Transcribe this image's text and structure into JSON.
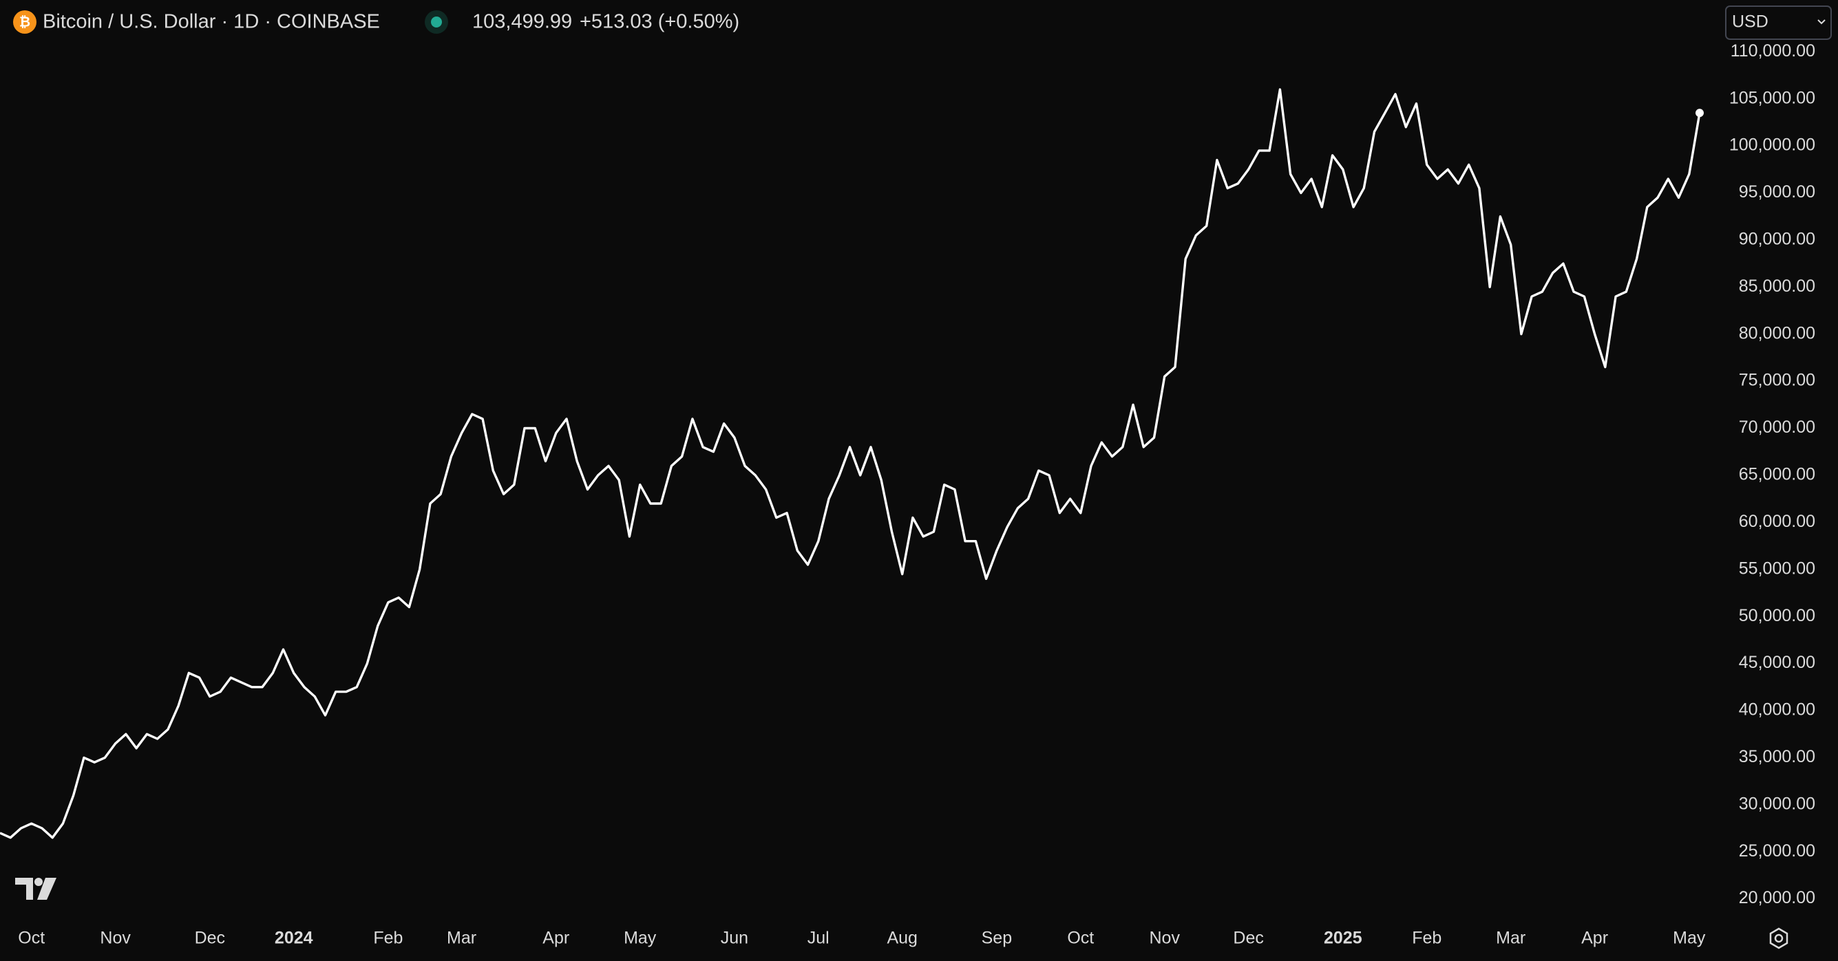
{
  "header": {
    "symbol": "Bitcoin / U.S. Dollar · 1D · COINBASE",
    "last_price": "103,499.99",
    "change": "+513.03 (+0.50%)",
    "currency": "USD"
  },
  "chart_data": {
    "type": "line",
    "color": "#ffffff",
    "grid": false,
    "ylim": [
      18000,
      115500
    ],
    "yticks": [
      {
        "value": 20000,
        "label": "20,000.00"
      },
      {
        "value": 25000,
        "label": "25,000.00"
      },
      {
        "value": 30000,
        "label": "30,000.00"
      },
      {
        "value": 35000,
        "label": "35,000.00"
      },
      {
        "value": 40000,
        "label": "40,000.00"
      },
      {
        "value": 45000,
        "label": "45,000.00"
      },
      {
        "value": 50000,
        "label": "50,000.00"
      },
      {
        "value": 55000,
        "label": "55,000.00"
      },
      {
        "value": 60000,
        "label": "60,000.00"
      },
      {
        "value": 65000,
        "label": "65,000.00"
      },
      {
        "value": 70000,
        "label": "70,000.00"
      },
      {
        "value": 75000,
        "label": "75,000.00"
      },
      {
        "value": 80000,
        "label": "80,000.00"
      },
      {
        "value": 85000,
        "label": "85,000.00"
      },
      {
        "value": 90000,
        "label": "90,000.00"
      },
      {
        "value": 95000,
        "label": "95,000.00"
      },
      {
        "value": 100000,
        "label": "100,000.00"
      },
      {
        "value": 105000,
        "label": "105,000.00"
      },
      {
        "value": 110000,
        "label": "110,000.00"
      }
    ],
    "categories": [
      null,
      null,
      null,
      "Oct",
      null,
      null,
      null,
      null,
      null,
      null,
      null,
      "Nov",
      null,
      null,
      null,
      null,
      null,
      null,
      null,
      null,
      "Dec",
      null,
      null,
      null,
      null,
      null,
      null,
      null,
      "2024",
      null,
      null,
      null,
      null,
      null,
      null,
      null,
      null,
      "Feb",
      null,
      null,
      null,
      null,
      null,
      null,
      "Mar",
      null,
      null,
      null,
      null,
      null,
      null,
      null,
      null,
      "Apr",
      null,
      null,
      null,
      null,
      null,
      null,
      null,
      "May",
      null,
      null,
      null,
      null,
      null,
      null,
      null,
      null,
      "Jun",
      null,
      null,
      null,
      null,
      null,
      null,
      null,
      "Jul",
      null,
      null,
      null,
      null,
      null,
      null,
      null,
      "Aug",
      null,
      null,
      null,
      null,
      null,
      null,
      null,
      null,
      "Sep",
      null,
      null,
      null,
      null,
      null,
      null,
      null,
      "Oct",
      null,
      null,
      null,
      null,
      null,
      null,
      null,
      "Nov",
      null,
      null,
      null,
      null,
      null,
      null,
      null,
      "Dec",
      null,
      null,
      null,
      null,
      null,
      null,
      null,
      null,
      "2025",
      null,
      null,
      null,
      null,
      null,
      null,
      null,
      "Feb",
      null,
      null,
      null,
      null,
      null,
      null,
      null,
      "Mar",
      null,
      null,
      null,
      null,
      null,
      null,
      null,
      "Apr",
      null,
      null,
      null,
      null,
      null,
      null,
      null,
      null,
      "May",
      null
    ],
    "values": [
      27000,
      26500,
      27500,
      28000,
      27500,
      26500,
      28000,
      31000,
      35000,
      34500,
      35000,
      36500,
      37500,
      36000,
      37500,
      37000,
      38000,
      40500,
      44000,
      43500,
      41500,
      42000,
      43500,
      43000,
      42500,
      42500,
      44000,
      46500,
      44000,
      42500,
      41500,
      39500,
      42000,
      42000,
      42500,
      45000,
      49000,
      51500,
      52000,
      51000,
      55000,
      62000,
      63000,
      67000,
      69500,
      71500,
      71000,
      65500,
      63000,
      64000,
      70000,
      70000,
      66500,
      69500,
      71000,
      66500,
      63500,
      65000,
      66000,
      64500,
      58500,
      64000,
      62000,
      62000,
      66000,
      67000,
      71000,
      68000,
      67500,
      70500,
      69000,
      66000,
      65000,
      63500,
      60500,
      61000,
      57000,
      55500,
      58000,
      62500,
      65000,
      68000,
      65000,
      68000,
      64500,
      59000,
      54500,
      60500,
      58500,
      59000,
      64000,
      63500,
      58000,
      58000,
      54000,
      57000,
      59500,
      61500,
      62500,
      65500,
      65000,
      61000,
      62500,
      61000,
      66000,
      68500,
      67000,
      68000,
      72500,
      68000,
      69000,
      75500,
      76500,
      88000,
      90500,
      91500,
      98500,
      95500,
      96000,
      97500,
      99500,
      99500,
      106000,
      97000,
      95000,
      96500,
      93500,
      99000,
      97500,
      93500,
      95500,
      101500,
      103500,
      105500,
      102000,
      104500,
      98000,
      96500,
      97500,
      96000,
      98000,
      95500,
      85000,
      92500,
      89500,
      80000,
      84000,
      84500,
      86500,
      87500,
      84500,
      84000,
      80000,
      76500,
      84000,
      84500,
      88000,
      93500,
      94500,
      96500,
      94500,
      97000,
      103500
    ]
  }
}
